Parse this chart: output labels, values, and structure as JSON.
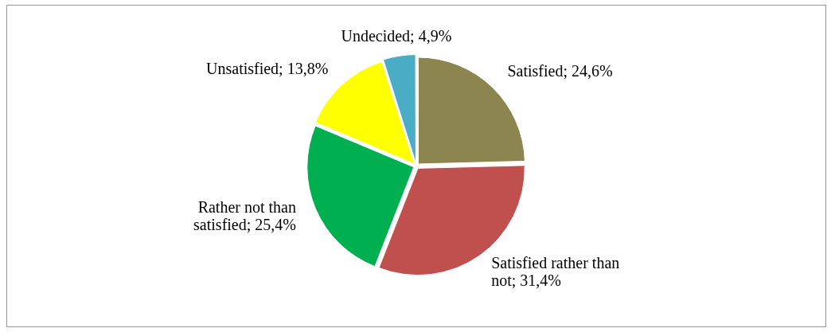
{
  "chart_data": {
    "type": "pie",
    "categories": [
      "Satisfied",
      "Satisfied rather than not",
      "Rather not than satisfied",
      "Unsatisfied",
      "Undecided"
    ],
    "values": [
      24.6,
      31.4,
      25.4,
      13.8,
      4.9
    ],
    "colors": [
      "#8c8550",
      "#c0504d",
      "#00b050",
      "#ffff00",
      "#4bacc6"
    ],
    "value_labels": [
      "24,6%",
      "31,4%",
      "25,4%",
      "13,8%",
      "4,9%"
    ],
    "legend": false
  }
}
